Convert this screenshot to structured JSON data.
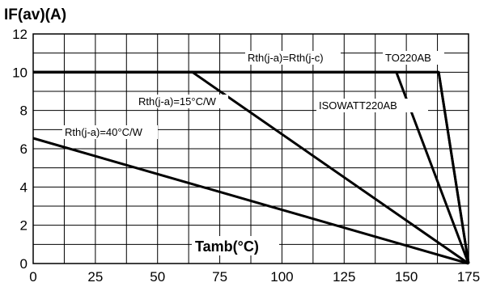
{
  "chart_data": {
    "type": "line",
    "ylabel": "IF(av)(A)",
    "xlabel": "Tamb(°C)",
    "xlim": [
      0,
      175
    ],
    "ylim": [
      0,
      12
    ],
    "xticks": [
      0,
      25,
      50,
      75,
      100,
      125,
      150,
      175
    ],
    "yticks": [
      0,
      2,
      4,
      6,
      8,
      10,
      12
    ],
    "grid": true,
    "series": [
      {
        "name": "Rth(j-a)=Rth(j-c)",
        "points": [
          [
            0,
            10
          ],
          [
            163,
            10
          ],
          [
            175,
            0
          ]
        ]
      },
      {
        "name": "TO220AB",
        "points": [
          [
            0,
            10
          ],
          [
            163,
            10
          ],
          [
            175,
            0
          ]
        ]
      },
      {
        "name": "ISOWATT220AB",
        "points": [
          [
            0,
            10
          ],
          [
            146,
            10
          ],
          [
            175,
            0
          ]
        ]
      },
      {
        "name": "Rth(j-a)=15°C/W",
        "points": [
          [
            0,
            10
          ],
          [
            64,
            10
          ],
          [
            175,
            0
          ]
        ]
      },
      {
        "name": "Rth(j-a)=40°C/W",
        "points": [
          [
            0,
            6.55
          ],
          [
            175,
            0
          ]
        ]
      }
    ]
  }
}
